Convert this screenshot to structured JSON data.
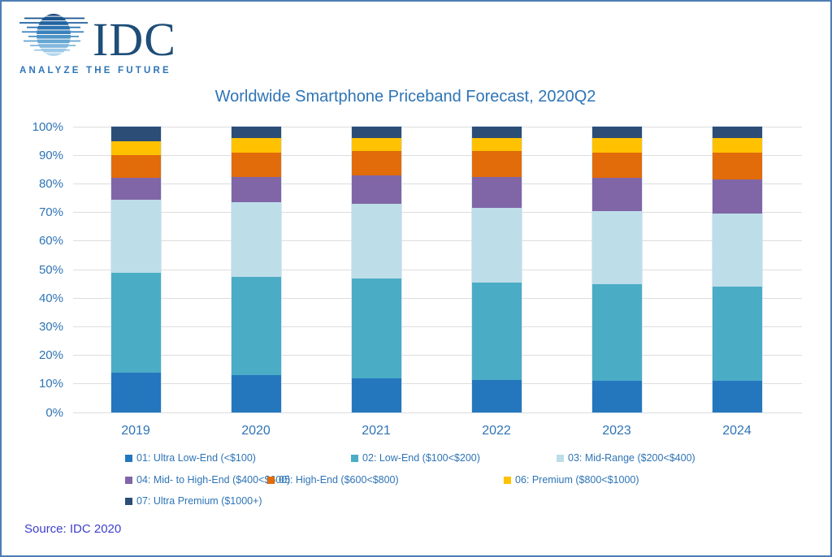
{
  "logo": {
    "brand": "IDC",
    "tagline": "ANALYZE THE FUTURE"
  },
  "title": "Worldwide Smartphone Priceband Forecast, 2020Q2",
  "source": "Source: IDC 2020",
  "colors": {
    "page_border": "#4E7CB5",
    "title_text": "#2E74B5",
    "axis_text": "#2E74B5",
    "source_text": "#3E3ECC",
    "gridline": "#DDDDDD",
    "logo_navy": "#1E4E79",
    "logo_blue": "#2E75B6"
  },
  "chart_data": {
    "type": "bar",
    "stacked": true,
    "unit": "percent of shipments",
    "title": "Worldwide Smartphone Priceband Forecast, 2020Q2",
    "xlabel": "",
    "ylabel": "",
    "ylim": [
      0,
      100
    ],
    "grid": true,
    "legend_position": "bottom",
    "categories": [
      "2019",
      "2020",
      "2021",
      "2022",
      "2023",
      "2024"
    ],
    "y_ticks": [
      "0%",
      "10%",
      "20%",
      "30%",
      "40%",
      "50%",
      "60%",
      "70%",
      "80%",
      "90%",
      "100%"
    ],
    "series": [
      {
        "name": "01: Ultra Low-End (<$100)",
        "color": "#2577BD",
        "values": [
          14,
          13,
          12,
          11.5,
          11,
          11
        ]
      },
      {
        "name": "02: Low-End ($100<$200)",
        "color": "#4BACC6",
        "values": [
          35,
          34.5,
          35,
          34,
          34,
          33
        ]
      },
      {
        "name": "03: Mid-Range ($200<$400)",
        "color": "#BDDDE9",
        "values": [
          25.5,
          26,
          26,
          26,
          25.5,
          25.5
        ]
      },
      {
        "name": "04: Mid- to High-End ($400<$600)",
        "color": "#8066A6",
        "values": [
          7.5,
          9,
          10,
          11,
          11.5,
          12
        ]
      },
      {
        "name": "05: High-End ($600<$800)",
        "color": "#E16C09",
        "values": [
          8,
          8.5,
          8.5,
          9,
          9,
          9.5
        ]
      },
      {
        "name": "06: Premium ($800<$1000)",
        "color": "#FFC100",
        "values": [
          5,
          5,
          4.5,
          4.5,
          5,
          5
        ]
      },
      {
        "name": "07: Ultra Premium ($1000+)",
        "color": "#2C4D75",
        "values": [
          5,
          4,
          4,
          4,
          4,
          4
        ]
      }
    ]
  }
}
